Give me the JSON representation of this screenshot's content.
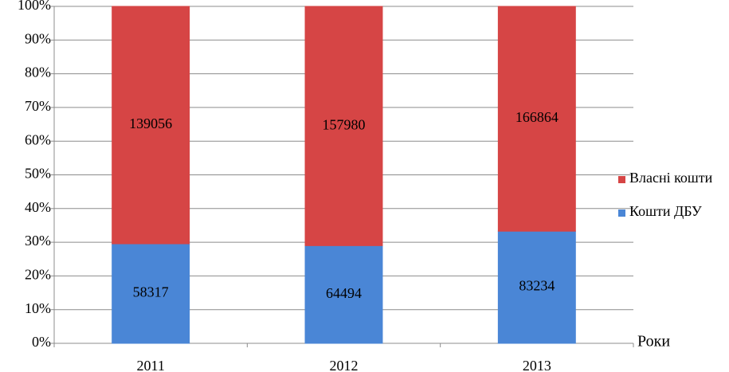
{
  "chart_data": {
    "type": "bar",
    "stacked": "percent",
    "x_label": "Роки",
    "categories": [
      "2011",
      "2012",
      "2013"
    ],
    "series": [
      {
        "name": "Кошти ДБУ",
        "color": "#4a86d6",
        "values": [
          58317,
          64494,
          83234
        ]
      },
      {
        "name": "Власні кошти",
        "color": "#d64545",
        "values": [
          139056,
          157980,
          166864
        ]
      }
    ],
    "ylim": [
      0,
      100
    ],
    "yticks": [
      {
        "value": 0,
        "label": "0%"
      },
      {
        "value": 10,
        "label": "10%"
      },
      {
        "value": 20,
        "label": "20%"
      },
      {
        "value": 30,
        "label": "30%"
      },
      {
        "value": 40,
        "label": "40%"
      },
      {
        "value": 50,
        "label": "50%"
      },
      {
        "value": 60,
        "label": "60%"
      },
      {
        "value": 70,
        "label": "70%"
      },
      {
        "value": 80,
        "label": "80%"
      },
      {
        "value": 90,
        "label": "90%"
      },
      {
        "value": 100,
        "label": "100%"
      }
    ],
    "grid": true,
    "legend": "right"
  }
}
